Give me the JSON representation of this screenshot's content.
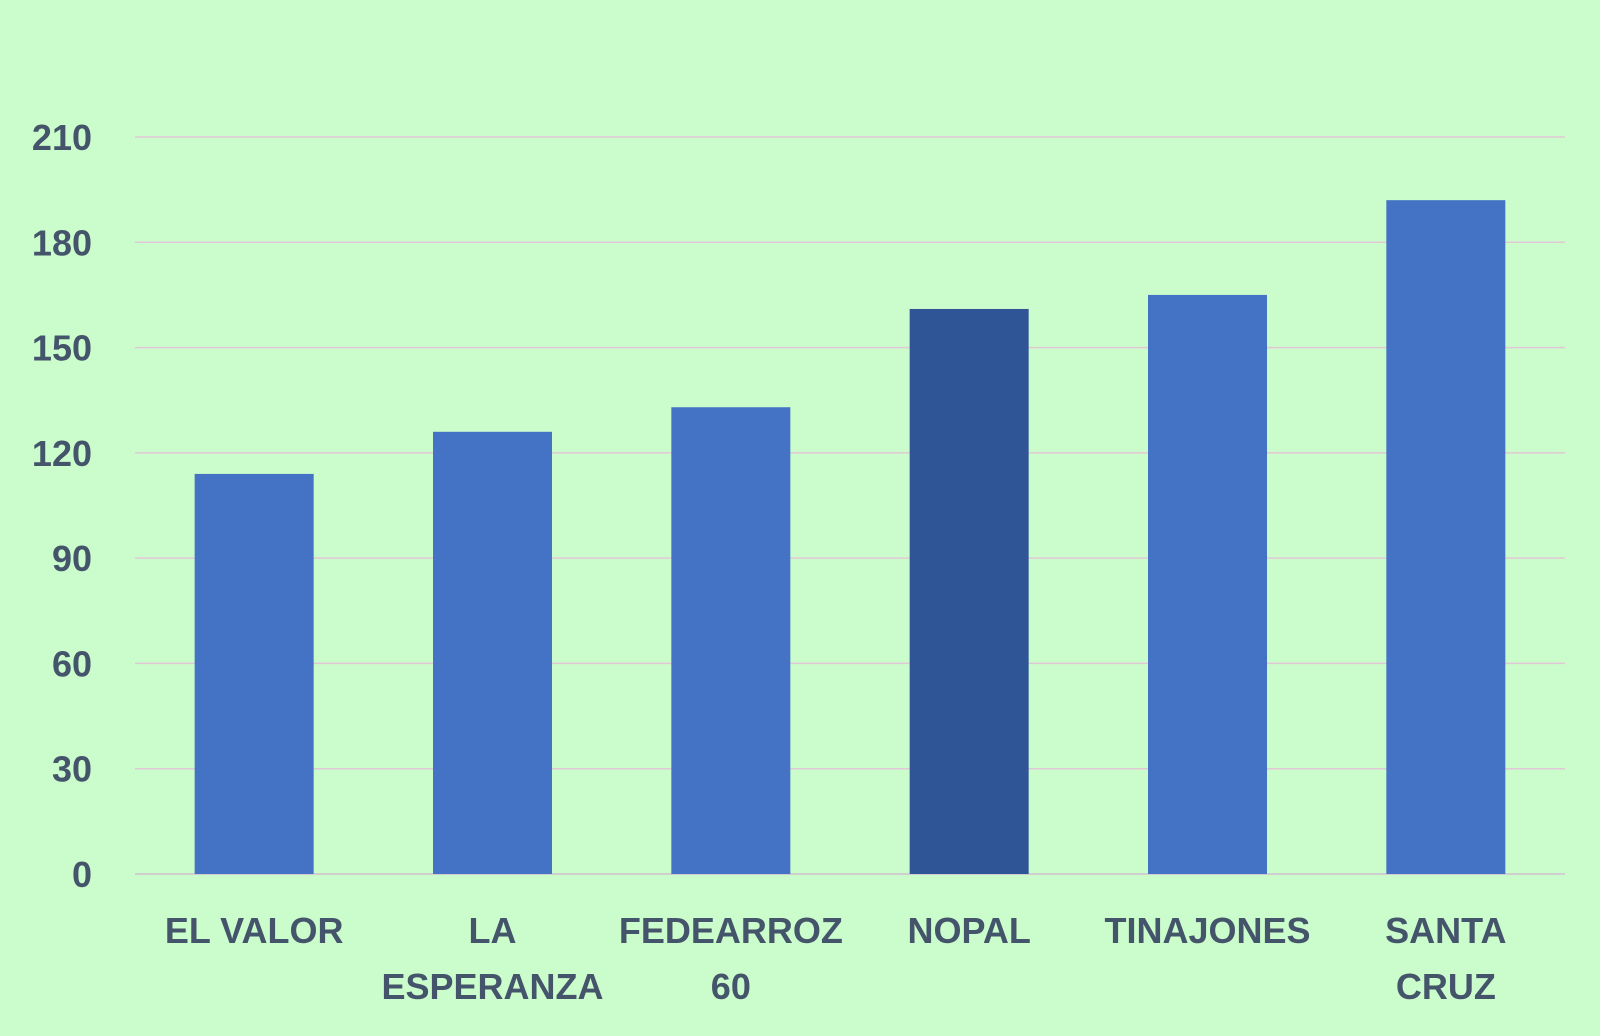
{
  "colors": {
    "background": "#cbfccb",
    "bar": "#4472c4",
    "bar_highlight": "#2f5597",
    "gridline": "#e2c8d6",
    "axis_line": "#cfcfcf",
    "label_text": "#44546a"
  },
  "chart_data": {
    "type": "bar",
    "categories": [
      [
        "EL VALOR"
      ],
      [
        "LA",
        "ESPERANZA"
      ],
      [
        "FEDEARROZ",
        "60"
      ],
      [
        "NOPAL"
      ],
      [
        "TINAJONES"
      ],
      [
        "SANTA",
        "CRUZ"
      ]
    ],
    "values": [
      114,
      126,
      133,
      161,
      165,
      192
    ],
    "highlight_index": 3,
    "ylim": [
      0,
      210
    ],
    "yticks": [
      "0",
      "30",
      "60",
      "90",
      "120",
      "150",
      "180",
      "210"
    ],
    "grid": true,
    "legend": "none",
    "title": "",
    "xlabel": "",
    "ylabel": ""
  }
}
